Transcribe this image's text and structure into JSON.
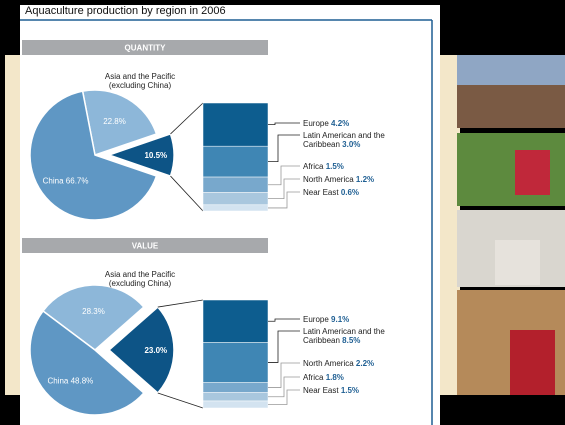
{
  "title": "Aquaculture production by region in 2006",
  "chart_data": [
    {
      "type": "pie",
      "title": "QUANTITY",
      "categories": [
        "China",
        "Asia and the Pacific (excluding China)",
        null
      ],
      "values": [
        66.7,
        22.8,
        10.5
      ],
      "value_labels": [
        "66.7%",
        "22.8%",
        "10.5%"
      ],
      "colors": [
        "#5f97c4",
        "#8db7d9",
        "#0d5486"
      ],
      "breakdown": {
        "categories": [
          "Europe",
          "Latin American and the Caribbean",
          "Africa",
          "North America",
          "Near East"
        ],
        "values": [
          4.2,
          3.0,
          1.5,
          1.2,
          0.6
        ],
        "value_labels": [
          "4.2%",
          "3.0%",
          "1.5%",
          "1.2%",
          "0.6%"
        ],
        "colors": [
          "#0d5d8f",
          "#3f86b4",
          "#78a8cc",
          "#a9c7de",
          "#d3e3f0"
        ]
      }
    },
    {
      "type": "pie",
      "title": "VALUE",
      "categories": [
        "China",
        "Asia and the Pacific (excluding China)",
        null
      ],
      "values": [
        48.8,
        28.3,
        23.0
      ],
      "value_labels": [
        "48.8%",
        "28.3%",
        "23.0%"
      ],
      "colors": [
        "#5f97c4",
        "#8db7d9",
        "#0d5486"
      ],
      "breakdown": {
        "categories": [
          "Europe",
          "Latin American and the Caribbean",
          "North America",
          "Africa",
          "Near East"
        ],
        "values": [
          9.1,
          8.5,
          2.2,
          1.8,
          1.5
        ],
        "value_labels": [
          "9.1%",
          "8.5%",
          "2.2%",
          "1.8%",
          "1.5%"
        ],
        "colors": [
          "#0d5d8f",
          "#3f86b4",
          "#78a8cc",
          "#a9c7de",
          "#d3e3f0"
        ]
      }
    }
  ]
}
